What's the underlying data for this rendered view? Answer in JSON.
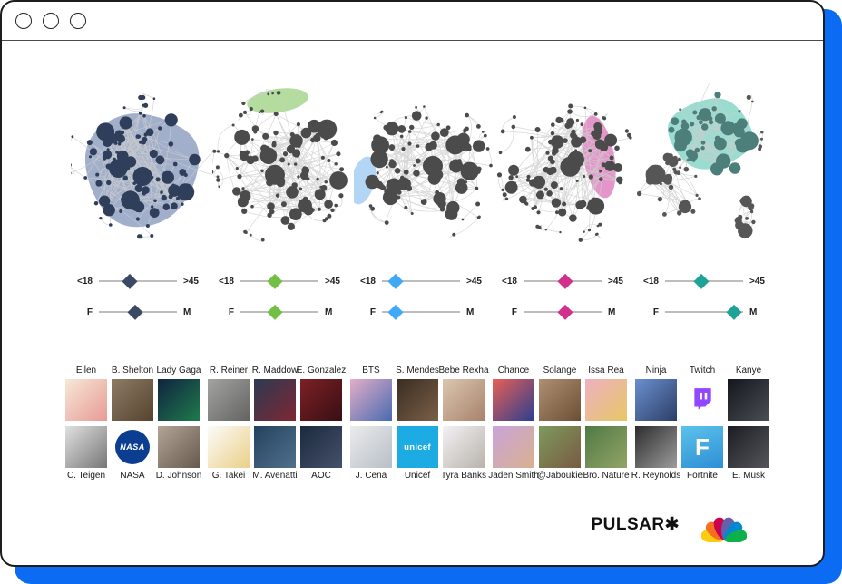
{
  "window": {
    "controls": [
      "close",
      "minimize",
      "maximize"
    ]
  },
  "clusters": [
    {
      "id": 1,
      "blob_color": "#99a8c7",
      "node_color": "#2f3e5a",
      "accent": "#3a4a66",
      "age": {
        "min": "<18",
        "max": ">45",
        "value": 0.4
      },
      "gender": {
        "min": "F",
        "max": "M",
        "value": 0.47
      }
    },
    {
      "id": 2,
      "blob_color": "#abd893",
      "node_color": "#4b4b4b",
      "accent": "#72bf44",
      "age": {
        "min": "<18",
        "max": ">45",
        "value": 0.44
      },
      "gender": {
        "min": "F",
        "max": "M",
        "value": 0.44
      }
    },
    {
      "id": 3,
      "blob_color": "#abd2f6",
      "node_color": "#4b4b4b",
      "accent": "#3fa9f5",
      "age": {
        "min": "<18",
        "max": ">45",
        "value": 0.17
      },
      "gender": {
        "min": "F",
        "max": "M",
        "value": 0.17
      }
    },
    {
      "id": 4,
      "blob_color": "#e18bc4",
      "node_color": "#4b4b4b",
      "accent": "#d1318a",
      "age": {
        "min": "<18",
        "max": ">45",
        "value": 0.53
      },
      "gender": {
        "min": "F",
        "max": "M",
        "value": 0.53
      }
    },
    {
      "id": 5,
      "blob_color": "#92d9cd",
      "node_color": "#4c7e7a",
      "node_color2": "#565656",
      "accent": "#1fa396",
      "age": {
        "min": "<18",
        "max": ">45",
        "value": 0.47
      },
      "gender": {
        "min": "F",
        "max": "M",
        "value": 0.88
      }
    }
  ],
  "people": {
    "groups": [
      {
        "top": [
          {
            "name": "Ellen",
            "type": "photo",
            "colors": [
              "#f6e8d8",
              "#e89a94"
            ]
          },
          {
            "name": "B. Shelton",
            "type": "photo",
            "colors": [
              "#8d7b64",
              "#55432f"
            ]
          },
          {
            "name": "Lady Gaga",
            "type": "photo",
            "colors": [
              "#10233f",
              "#1f7a4d"
            ]
          }
        ],
        "bottom": [
          {
            "name": "C. Teigen",
            "type": "photo",
            "colors": [
              "#e0e0e0",
              "#777777"
            ]
          },
          {
            "name": "NASA",
            "type": "logo-nasa",
            "colors": [
              "#ffffff",
              "#0b3d91"
            ],
            "label": "NASA"
          },
          {
            "name": "D. Johnson",
            "type": "photo",
            "colors": [
              "#b3a496",
              "#665a4e"
            ]
          }
        ]
      },
      {
        "top": [
          {
            "name": "R. Reiner",
            "type": "photo",
            "colors": [
              "#a3a3a1",
              "#636361"
            ]
          },
          {
            "name": "R. Maddow",
            "type": "photo",
            "colors": [
              "#2c3a52",
              "#7e2734"
            ]
          },
          {
            "name": "E. Gonzalez",
            "type": "photo",
            "colors": [
              "#7c2026",
              "#380f13"
            ]
          }
        ],
        "bottom": [
          {
            "name": "G. Takei",
            "type": "photo",
            "colors": [
              "#fbfbf9",
              "#ecd089"
            ]
          },
          {
            "name": "M. Avenatti",
            "type": "photo",
            "colors": [
              "#24425e",
              "#51708c"
            ]
          },
          {
            "name": "AOC",
            "type": "photo",
            "colors": [
              "#1c2a3d",
              "#44516b"
            ]
          }
        ]
      },
      {
        "top": [
          {
            "name": "BTS",
            "type": "photo",
            "colors": [
              "#e3aec9",
              "#4a6ab0"
            ]
          },
          {
            "name": "S. Mendes",
            "type": "photo",
            "colors": [
              "#3a2d22",
              "#7a5f48"
            ]
          },
          {
            "name": "Bebe Rexha",
            "type": "photo",
            "colors": [
              "#dcc6b0",
              "#a8836a"
            ]
          }
        ],
        "bottom": [
          {
            "name": "J. Cena",
            "type": "photo",
            "colors": [
              "#ebebeb",
              "#b8bfc7"
            ]
          },
          {
            "name": "Unicef",
            "type": "logo-unicef",
            "colors": [
              "#1cabe2",
              "#1cabe2"
            ],
            "label": "unicef"
          },
          {
            "name": "Tyra Banks",
            "type": "photo",
            "colors": [
              "#f2f1f4",
              "#b9b3ab"
            ]
          }
        ]
      },
      {
        "top": [
          {
            "name": "Chance",
            "type": "photo",
            "colors": [
              "#e85f55",
              "#2b3f8f"
            ]
          },
          {
            "name": "Solange",
            "type": "photo",
            "colors": [
              "#b08f72",
              "#6b4f35"
            ]
          },
          {
            "name": "Issa Rea",
            "type": "photo",
            "colors": [
              "#eeb0c0",
              "#e6c865"
            ]
          }
        ],
        "bottom": [
          {
            "name": "Jaden Smith",
            "type": "photo",
            "colors": [
              "#c9a3da",
              "#d9b18f"
            ]
          },
          {
            "name": "@Jaboukie",
            "type": "photo",
            "colors": [
              "#7c9a5d",
              "#7a5a42"
            ]
          },
          {
            "name": "Bro. Nature",
            "type": "photo",
            "colors": [
              "#4f7a44",
              "#93a468"
            ]
          }
        ]
      },
      {
        "top": [
          {
            "name": "Ninja",
            "type": "photo",
            "colors": [
              "#6a8fd0",
              "#2c3e66"
            ]
          },
          {
            "name": "Twitch",
            "type": "logo-twitch",
            "colors": [
              "#ffffff",
              "#9146ff"
            ]
          },
          {
            "name": "Kanye",
            "type": "photo",
            "colors": [
              "#13161c",
              "#4a4e55"
            ]
          }
        ],
        "bottom": [
          {
            "name": "R. Reynolds",
            "type": "photo",
            "colors": [
              "#2d2d2d",
              "#9c9c9c"
            ]
          },
          {
            "name": "Fortnite",
            "type": "logo-fortnite",
            "colors": [
              "#5bc2ea",
              "#2e8fd6"
            ],
            "label": "F"
          },
          {
            "name": "E. Musk",
            "type": "photo",
            "colors": [
              "#1c1d22",
              "#55565c"
            ]
          }
        ]
      }
    ]
  },
  "footer": {
    "brand": "PULSAR✱",
    "nbc_logo": "nbc-peacock",
    "nbc_colors": [
      "#fccc12",
      "#f37021",
      "#cc004c",
      "#6460aa",
      "#0089d0",
      "#0db14b"
    ]
  },
  "colors": {
    "background_accent": "#0b6cf3",
    "edge": "#cdcdcd",
    "track": "#bdbdbd"
  }
}
